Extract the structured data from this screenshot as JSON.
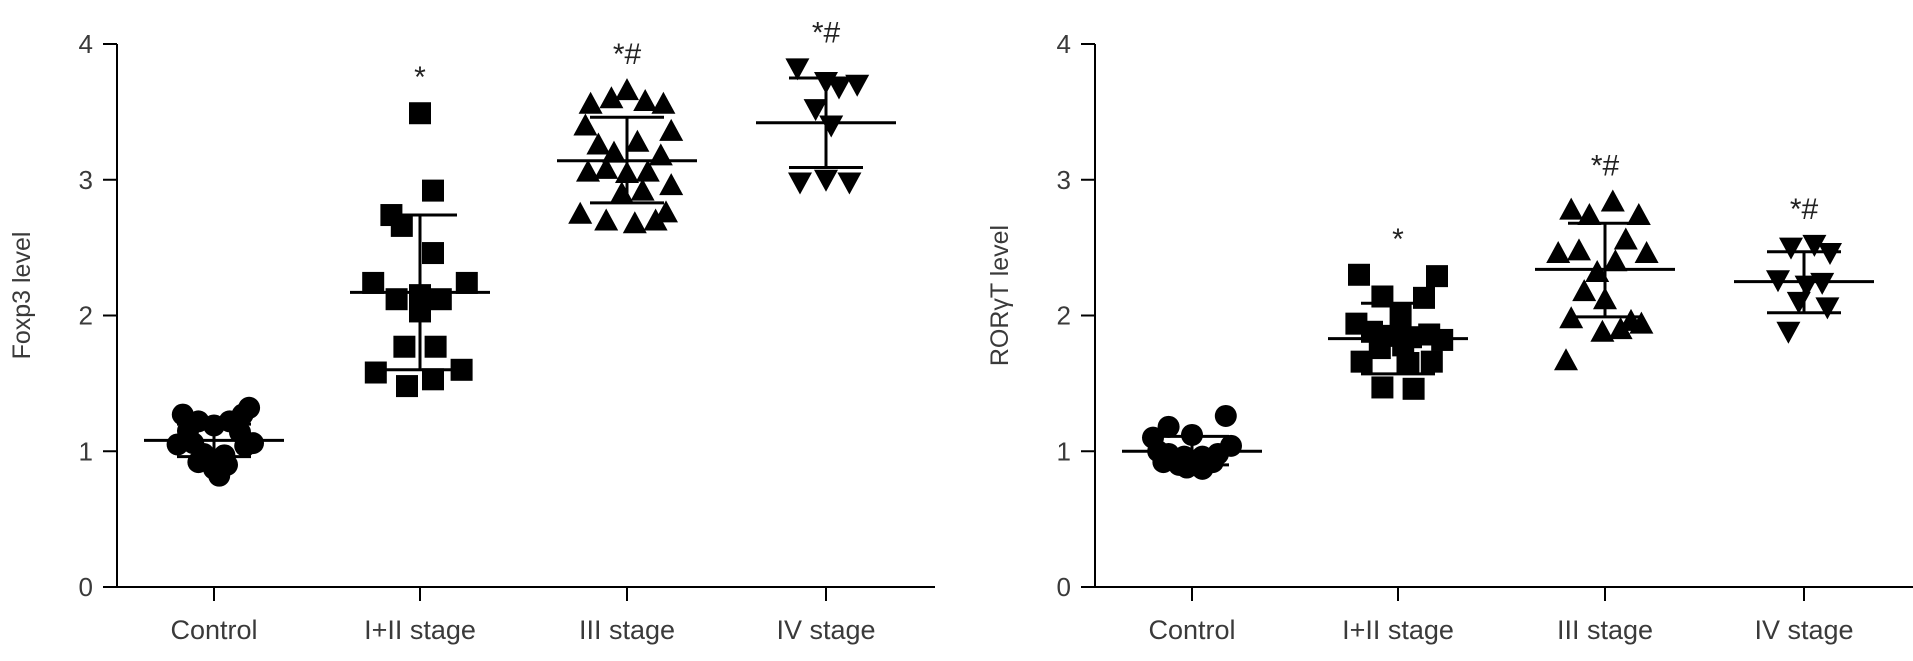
{
  "chart_data": [
    {
      "type": "scatter",
      "ylabel": "Foxp3 level",
      "ylim": [
        0,
        4
      ],
      "yticks": [
        0,
        1,
        2,
        3,
        4
      ],
      "categories": [
        "Control",
        "I+II stage",
        "III stage",
        "IV stage"
      ],
      "groups": [
        {
          "category": "Control",
          "marker": "circle",
          "mean": 1.08,
          "sd_upper": 1.2,
          "sd_lower": 0.96,
          "significance": "",
          "points": [
            [
              -0.24,
              1.27
            ],
            [
              -0.12,
              1.22
            ],
            [
              0.0,
              1.19
            ],
            [
              0.12,
              1.22
            ],
            [
              0.22,
              1.27
            ],
            [
              0.27,
              1.32
            ],
            [
              -0.2,
              1.15
            ],
            [
              0.2,
              1.14
            ],
            [
              -0.28,
              1.05
            ],
            [
              -0.16,
              1.06
            ],
            [
              0.24,
              1.04
            ],
            [
              0.3,
              1.06
            ],
            [
              -0.08,
              0.98
            ],
            [
              0.08,
              0.97
            ],
            [
              -0.12,
              0.92
            ],
            [
              0.1,
              0.9
            ],
            [
              0.0,
              0.87
            ],
            [
              0.04,
              0.82
            ]
          ]
        },
        {
          "category": "I+II stage",
          "marker": "square",
          "mean": 2.17,
          "sd_upper": 2.74,
          "sd_lower": 1.6,
          "significance": "*",
          "points": [
            [
              0.0,
              3.49
            ],
            [
              0.1,
              2.92
            ],
            [
              -0.22,
              2.74
            ],
            [
              -0.14,
              2.66
            ],
            [
              0.1,
              2.46
            ],
            [
              -0.36,
              2.24
            ],
            [
              0.36,
              2.24
            ],
            [
              -0.18,
              2.12
            ],
            [
              0.0,
              2.15
            ],
            [
              0.16,
              2.12
            ],
            [
              0.0,
              2.03
            ],
            [
              -0.12,
              1.77
            ],
            [
              0.12,
              1.77
            ],
            [
              -0.34,
              1.58
            ],
            [
              0.32,
              1.6
            ],
            [
              0.1,
              1.53
            ],
            [
              -0.1,
              1.48
            ]
          ]
        },
        {
          "category": "III stage",
          "marker": "triangle-up",
          "mean": 3.14,
          "sd_upper": 3.46,
          "sd_lower": 2.83,
          "significance": "*#",
          "points": [
            [
              -0.28,
              3.56
            ],
            [
              -0.12,
              3.6
            ],
            [
              0.0,
              3.66
            ],
            [
              0.14,
              3.58
            ],
            [
              0.28,
              3.56
            ],
            [
              -0.32,
              3.4
            ],
            [
              0.34,
              3.36
            ],
            [
              -0.22,
              3.26
            ],
            [
              -0.1,
              3.2
            ],
            [
              0.08,
              3.28
            ],
            [
              0.26,
              3.18
            ],
            [
              -0.3,
              3.06
            ],
            [
              -0.16,
              3.08
            ],
            [
              0.0,
              3.05
            ],
            [
              0.16,
              3.06
            ],
            [
              0.34,
              2.96
            ],
            [
              -0.04,
              2.9
            ],
            [
              0.12,
              2.92
            ],
            [
              -0.36,
              2.75
            ],
            [
              -0.16,
              2.7
            ],
            [
              0.06,
              2.68
            ],
            [
              0.22,
              2.7
            ],
            [
              0.3,
              2.76
            ]
          ]
        },
        {
          "category": "IV stage",
          "marker": "triangle-down",
          "mean": 3.42,
          "sd_upper": 3.75,
          "sd_lower": 3.09,
          "significance": "*#",
          "points": [
            [
              -0.22,
              3.82
            ],
            [
              0.0,
              3.72
            ],
            [
              0.1,
              3.68
            ],
            [
              0.24,
              3.7
            ],
            [
              -0.08,
              3.52
            ],
            [
              0.04,
              3.4
            ],
            [
              -0.2,
              2.98
            ],
            [
              0.0,
              3.0
            ],
            [
              0.18,
              2.98
            ]
          ]
        }
      ]
    },
    {
      "type": "scatter",
      "ylabel": "RORγT level",
      "ylim": [
        0,
        4
      ],
      "yticks": [
        0,
        1,
        2,
        3,
        4
      ],
      "categories": [
        "Control",
        "I+II stage",
        "III stage",
        "IV stage"
      ],
      "groups": [
        {
          "category": "Control",
          "marker": "circle",
          "mean": 1.0,
          "sd_upper": 1.11,
          "sd_lower": 0.9,
          "significance": "",
          "points": [
            [
              -0.3,
              1.1
            ],
            [
              -0.18,
              1.18
            ],
            [
              0.0,
              1.12
            ],
            [
              0.26,
              1.26
            ],
            [
              -0.26,
              1.0
            ],
            [
              0.3,
              1.04
            ],
            [
              -0.18,
              0.98
            ],
            [
              -0.06,
              0.96
            ],
            [
              0.08,
              0.96
            ],
            [
              0.2,
              0.98
            ],
            [
              -0.22,
              0.92
            ],
            [
              -0.1,
              0.9
            ],
            [
              0.04,
              0.9
            ],
            [
              0.16,
              0.92
            ],
            [
              -0.04,
              0.88
            ],
            [
              0.08,
              0.87
            ]
          ]
        },
        {
          "category": "I+II stage",
          "marker": "square",
          "mean": 1.83,
          "sd_upper": 2.09,
          "sd_lower": 1.57,
          "significance": "*",
          "points": [
            [
              -0.3,
              2.3
            ],
            [
              0.3,
              2.29
            ],
            [
              -0.12,
              2.14
            ],
            [
              0.2,
              2.13
            ],
            [
              0.02,
              2.0
            ],
            [
              -0.32,
              1.94
            ],
            [
              -0.2,
              1.88
            ],
            [
              -0.06,
              1.85
            ],
            [
              0.1,
              1.84
            ],
            [
              0.24,
              1.86
            ],
            [
              -0.14,
              1.76
            ],
            [
              0.04,
              1.78
            ],
            [
              0.34,
              1.82
            ],
            [
              -0.28,
              1.66
            ],
            [
              0.08,
              1.65
            ],
            [
              0.26,
              1.66
            ],
            [
              -0.12,
              1.47
            ],
            [
              0.12,
              1.46
            ]
          ]
        },
        {
          "category": "III stage",
          "marker": "triangle-up",
          "mean": 2.34,
          "sd_upper": 2.68,
          "sd_lower": 1.99,
          "significance": "*#",
          "points": [
            [
              -0.26,
              2.78
            ],
            [
              -0.12,
              2.74
            ],
            [
              0.06,
              2.84
            ],
            [
              0.26,
              2.74
            ],
            [
              -0.36,
              2.46
            ],
            [
              -0.2,
              2.48
            ],
            [
              0.16,
              2.56
            ],
            [
              0.32,
              2.46
            ],
            [
              -0.06,
              2.32
            ],
            [
              0.08,
              2.4
            ],
            [
              -0.16,
              2.18
            ],
            [
              0.0,
              2.12
            ],
            [
              -0.26,
              1.98
            ],
            [
              0.2,
              1.96
            ],
            [
              0.28,
              1.94
            ],
            [
              0.12,
              1.9
            ],
            [
              -0.02,
              1.88
            ],
            [
              -0.3,
              1.67
            ]
          ]
        },
        {
          "category": "IV stage",
          "marker": "triangle-down",
          "mean": 2.25,
          "sd_upper": 2.47,
          "sd_lower": 2.02,
          "significance": "*#",
          "points": [
            [
              -0.1,
              2.5
            ],
            [
              0.08,
              2.52
            ],
            [
              0.2,
              2.46
            ],
            [
              -0.2,
              2.26
            ],
            [
              0.02,
              2.22
            ],
            [
              0.14,
              2.24
            ],
            [
              -0.04,
              2.1
            ],
            [
              0.18,
              2.06
            ],
            [
              -0.12,
              1.88
            ]
          ]
        }
      ]
    }
  ]
}
